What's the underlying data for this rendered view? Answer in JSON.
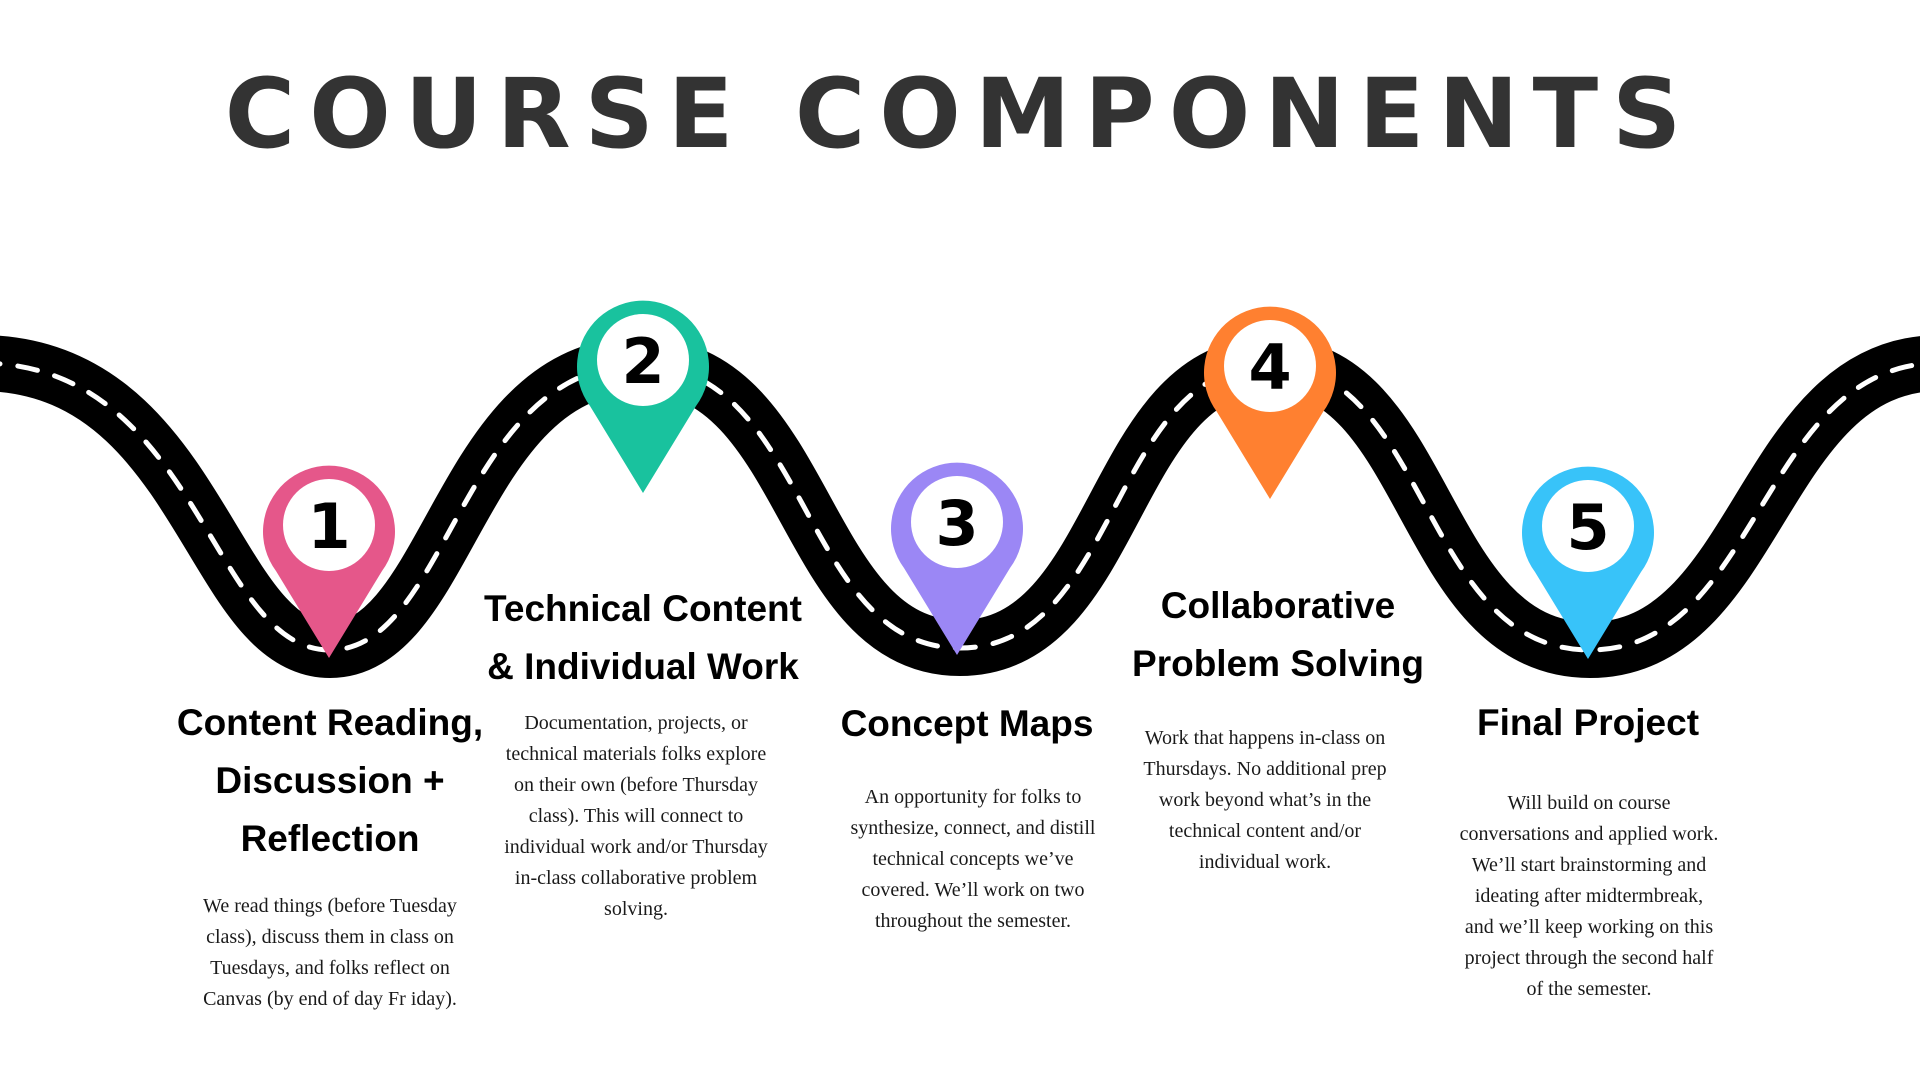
{
  "title": "COURSE COMPONENTS",
  "colors": {
    "road": "#000000",
    "lane_marks": "#ffffff",
    "pin_1": "#e5578a",
    "pin_2": "#19c29e",
    "pin_3": "#9b87f5",
    "pin_4": "#ff8030",
    "pin_5": "#38c3f9"
  },
  "components": [
    {
      "number": "1",
      "heading": "Content Reading,\nDiscussion +\nReflection",
      "description": "We read things (before Tuesday\nclass), discuss them in class on\nTuesdays, and folks reflect on\nCanvas (by end of day Fr iday)."
    },
    {
      "number": "2",
      "heading": "Technical Content\n& Individual Work",
      "description": "Documentation, projects, or\ntechnical materials folks explore\non their own (before Thursday\nclass). This will connect to\nindividual work and/or Thursday\nin-class collaborative problem\nsolving."
    },
    {
      "number": "3",
      "heading": "Concept Maps",
      "description": "An opportunity for folks to\nsynthesize, connect, and distill\ntechnical concepts we’ve\ncovered. We’ll work on two\nthroughout the semester."
    },
    {
      "number": "4",
      "heading": "Collaborative\nProblem Solving",
      "description": "Work that happens in-class on\nThursdays. No additional prep\nwork beyond what’s in the\ntechnical content and/or\nindividual work."
    },
    {
      "number": "5",
      "heading": "Final Project",
      "description": "Will build on course\nconversations and applied work.\nWe’ll start brainstorming and\nideating after midtermbreak,\nand we’ll keep working on this\nproject through the second half\nof the semester."
    }
  ]
}
